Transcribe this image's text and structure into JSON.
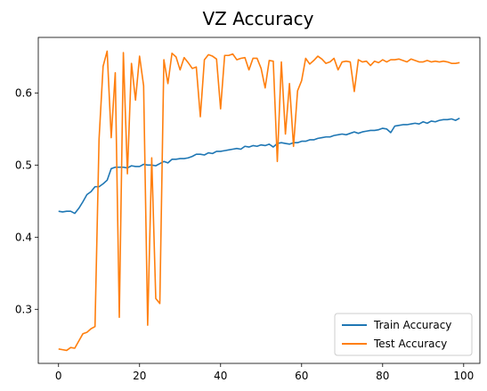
{
  "chart_data": {
    "type": "line",
    "title": "VZ Accuracy",
    "xlabel": "",
    "ylabel": "",
    "xlim": [
      -5,
      104
    ],
    "ylim": [
      0.225,
      0.677
    ],
    "xticks": [
      0,
      20,
      40,
      60,
      80,
      100
    ],
    "yticks": [
      0.3,
      0.4,
      0.5,
      0.6
    ],
    "grid": false,
    "legend_position": "lower-right",
    "series": [
      {
        "name": "Train Accuracy",
        "color": "#1f77b4",
        "x": [
          0,
          1,
          2,
          3,
          4,
          5,
          6,
          7,
          8,
          9,
          10,
          11,
          12,
          13,
          14,
          15,
          16,
          17,
          18,
          19,
          20,
          21,
          22,
          23,
          24,
          25,
          26,
          27,
          28,
          29,
          30,
          31,
          32,
          33,
          34,
          35,
          36,
          37,
          38,
          39,
          40,
          41,
          42,
          43,
          44,
          45,
          46,
          47,
          48,
          49,
          50,
          51,
          52,
          53,
          54,
          55,
          56,
          57,
          58,
          59,
          60,
          61,
          62,
          63,
          64,
          65,
          66,
          67,
          68,
          69,
          70,
          71,
          72,
          73,
          74,
          75,
          76,
          77,
          78,
          79,
          80,
          81,
          82,
          83,
          84,
          85,
          86,
          87,
          88,
          89,
          90,
          91,
          92,
          93,
          94,
          95,
          96,
          97,
          98,
          99
        ],
        "values": [
          0.436,
          0.435,
          0.436,
          0.436,
          0.433,
          0.44,
          0.449,
          0.459,
          0.463,
          0.47,
          0.47,
          0.474,
          0.479,
          0.495,
          0.497,
          0.497,
          0.497,
          0.496,
          0.499,
          0.498,
          0.498,
          0.501,
          0.5,
          0.5,
          0.499,
          0.502,
          0.505,
          0.503,
          0.508,
          0.508,
          0.509,
          0.509,
          0.51,
          0.512,
          0.515,
          0.515,
          0.514,
          0.517,
          0.516,
          0.519,
          0.519,
          0.52,
          0.521,
          0.522,
          0.523,
          0.522,
          0.526,
          0.525,
          0.527,
          0.526,
          0.528,
          0.527,
          0.529,
          0.525,
          0.53,
          0.531,
          0.53,
          0.529,
          0.531,
          0.531,
          0.533,
          0.533,
          0.535,
          0.535,
          0.537,
          0.538,
          0.539,
          0.539,
          0.541,
          0.542,
          0.543,
          0.542,
          0.544,
          0.546,
          0.544,
          0.546,
          0.547,
          0.548,
          0.548,
          0.549,
          0.551,
          0.55,
          0.545,
          0.554,
          0.555,
          0.556,
          0.556,
          0.557,
          0.558,
          0.557,
          0.56,
          0.558,
          0.561,
          0.56,
          0.562,
          0.563,
          0.563,
          0.564,
          0.562,
          0.565
        ]
      },
      {
        "name": "Test Accuracy",
        "color": "#ff7f0e",
        "x": [
          0,
          1,
          2,
          3,
          4,
          5,
          6,
          7,
          8,
          9,
          10,
          11,
          12,
          13,
          14,
          15,
          16,
          17,
          18,
          19,
          20,
          21,
          22,
          23,
          24,
          25,
          26,
          27,
          28,
          29,
          30,
          31,
          32,
          33,
          34,
          35,
          36,
          37,
          38,
          39,
          40,
          41,
          42,
          43,
          44,
          45,
          46,
          47,
          48,
          49,
          50,
          51,
          52,
          53,
          54,
          55,
          56,
          57,
          58,
          59,
          60,
          61,
          62,
          63,
          64,
          65,
          66,
          67,
          68,
          69,
          70,
          71,
          72,
          73,
          74,
          75,
          76,
          77,
          78,
          79,
          80,
          81,
          82,
          83,
          84,
          85,
          86,
          87,
          88,
          89,
          90,
          91,
          92,
          93,
          94,
          95,
          96,
          97,
          98,
          99
        ],
        "values": [
          0.245,
          0.244,
          0.243,
          0.247,
          0.246,
          0.256,
          0.266,
          0.268,
          0.273,
          0.276,
          0.536,
          0.637,
          0.658,
          0.538,
          0.628,
          0.289,
          0.656,
          0.488,
          0.641,
          0.59,
          0.651,
          0.61,
          0.278,
          0.51,
          0.315,
          0.308,
          0.646,
          0.613,
          0.655,
          0.65,
          0.632,
          0.649,
          0.642,
          0.634,
          0.636,
          0.567,
          0.646,
          0.653,
          0.651,
          0.647,
          0.578,
          0.652,
          0.652,
          0.654,
          0.646,
          0.648,
          0.649,
          0.632,
          0.648,
          0.648,
          0.634,
          0.607,
          0.645,
          0.644,
          0.505,
          0.643,
          0.543,
          0.613,
          0.526,
          0.603,
          0.617,
          0.648,
          0.64,
          0.645,
          0.651,
          0.647,
          0.641,
          0.643,
          0.648,
          0.632,
          0.643,
          0.644,
          0.643,
          0.602,
          0.646,
          0.643,
          0.644,
          0.638,
          0.644,
          0.642,
          0.646,
          0.643,
          0.646,
          0.646,
          0.647,
          0.645,
          0.643,
          0.647,
          0.645,
          0.643,
          0.643,
          0.645,
          0.643,
          0.644,
          0.643,
          0.644,
          0.643,
          0.641,
          0.641,
          0.642
        ]
      }
    ]
  }
}
